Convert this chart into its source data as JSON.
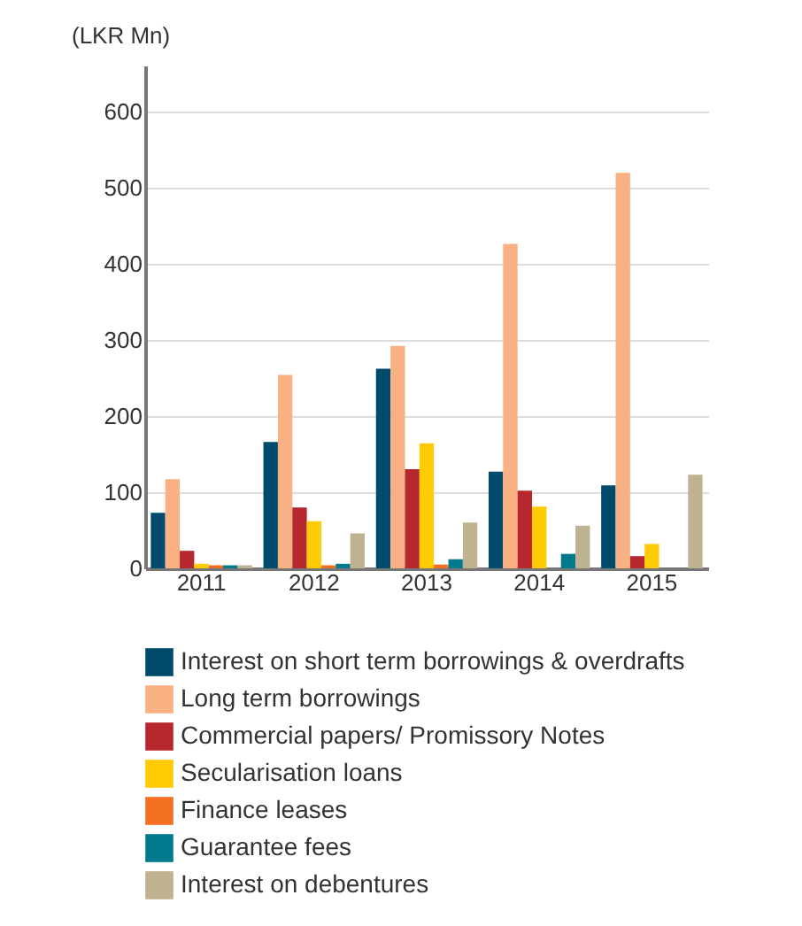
{
  "chart_data": {
    "type": "bar",
    "ylabel": "(LKR Mn)",
    "categories": [
      "2011",
      "2012",
      "2013",
      "2014",
      "2015"
    ],
    "series": [
      {
        "name": "Interest on short term borrowings & overdrafts",
        "color": "#004b6b",
        "values": [
          73,
          166,
          262,
          127,
          109
        ]
      },
      {
        "name": "Long term borrowings",
        "color": "#f9b183",
        "values": [
          117,
          254,
          292,
          426,
          519
        ]
      },
      {
        "name": "Commercial papers/ Promissory Notes",
        "color": "#b7282e",
        "values": [
          23,
          80,
          130,
          102,
          16
        ]
      },
      {
        "name": "Secularisation loans",
        "color": "#ffcb05",
        "values": [
          6,
          62,
          164,
          81,
          32
        ]
      },
      {
        "name": "Finance leases",
        "color": "#f36f21",
        "values": [
          4,
          4,
          5,
          null,
          null
        ]
      },
      {
        "name": "Guarantee fees",
        "color": "#007a8c",
        "values": [
          4,
          6,
          12,
          19,
          null
        ]
      },
      {
        "name": "Interest on debentures",
        "color": "#bfb291",
        "values": [
          4,
          46,
          60,
          56,
          123
        ]
      }
    ],
    "ylim": [
      0,
      660
    ],
    "yticks": [
      0,
      100,
      200,
      300,
      400,
      500,
      600
    ],
    "grid": "y",
    "legend": "bottom"
  }
}
